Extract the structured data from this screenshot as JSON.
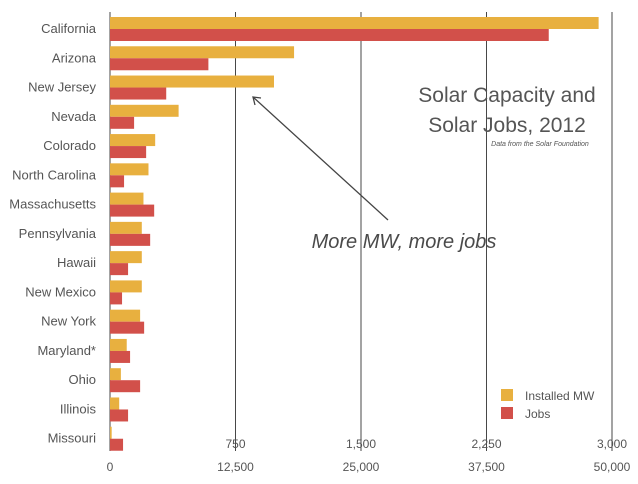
{
  "chart_data": {
    "type": "bar",
    "orientation": "horizontal",
    "title": "Solar Capacity and Solar Jobs, 2012",
    "subtitle": "Data from the Solar Foundation",
    "annotation": "More MW, more jobs",
    "categories": [
      "California",
      "Arizona",
      "New Jersey",
      "Nevada",
      "Colorado",
      "North Carolina",
      "Massachusetts",
      "Pennsylvania",
      "Hawaii",
      "New Mexico",
      "New York",
      "Maryland*",
      "Ohio",
      "Illinois",
      "Missouri"
    ],
    "series": [
      {
        "name": "Installed MW",
        "axis": "mw",
        "color": "#e8b03f",
        "values": [
          2920,
          1100,
          980,
          410,
          270,
          230,
          200,
          190,
          190,
          190,
          180,
          100,
          65,
          55,
          10
        ]
      },
      {
        "name": "Jobs",
        "axis": "jobs",
        "color": "#d2504a",
        "values": [
          43700,
          9800,
          5600,
          2400,
          3600,
          1400,
          4400,
          4000,
          1800,
          1200,
          3400,
          2000,
          3000,
          1800,
          1300
        ]
      }
    ],
    "axes": {
      "mw": {
        "range": [
          0,
          3000
        ],
        "ticks": [
          750,
          1500,
          2250,
          3000
        ],
        "tick_labels": [
          "750",
          "1,500",
          "2,250",
          "3,000"
        ]
      },
      "jobs": {
        "range": [
          0,
          50000
        ],
        "ticks": [
          0,
          12500,
          25000,
          37500,
          50000
        ],
        "tick_labels": [
          "0",
          "12,500",
          "25,000",
          "37,500",
          "50,000"
        ]
      }
    },
    "grid": true,
    "legend": "bottom-right"
  }
}
